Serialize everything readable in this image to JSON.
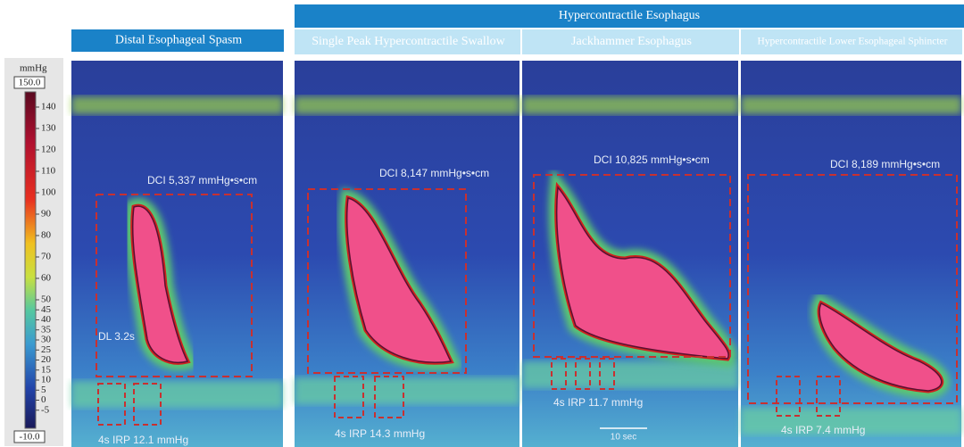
{
  "colorbar": {
    "unit": "mmHg",
    "max_label": "150.0",
    "min_label": "-10.0",
    "ticks": [
      "140",
      "130",
      "120",
      "110",
      "100",
      "90",
      "80",
      "70",
      "60",
      "50",
      "45",
      "40",
      "35",
      "30",
      "25",
      "20",
      "15",
      "10",
      "5",
      "0",
      "-5"
    ]
  },
  "group_header": "Hypercontractile Esophagus",
  "panels": [
    {
      "title": "Distal Esophageal Spasm",
      "dci": "DCI 5,337 mmHg•s•cm",
      "dl": "DL 3.2s",
      "irp": "4s IRP 12.1 mmHg"
    },
    {
      "title": "Single Peak Hypercontractile Swallow",
      "dci": "DCI 8,147 mmHg•s•cm",
      "irp": "4s IRP 14.3 mmHg"
    },
    {
      "title": "Jackhammer Esophagus",
      "dci": "DCI 10,825 mmHg•s•cm",
      "irp": "4s IRP 11.7 mmHg",
      "scale": "10 sec"
    },
    {
      "title": "Hypercontractile Lower Esophageal Sphincter",
      "dci": "DCI 8,189 mmHg•s•cm",
      "irp": "4s IRP 7.4 mmHg"
    }
  ]
}
